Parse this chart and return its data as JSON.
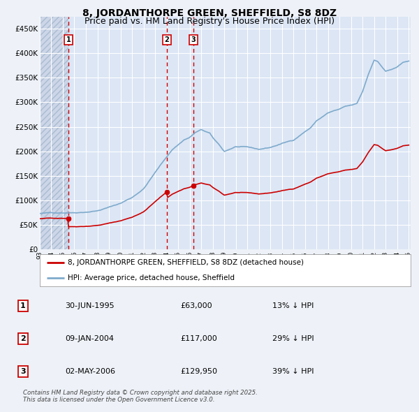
{
  "title": "8, JORDANTHORPE GREEN, SHEFFIELD, S8 8DZ",
  "subtitle": "Price paid vs. HM Land Registry's House Price Index (HPI)",
  "title_fontsize": 10,
  "subtitle_fontsize": 9,
  "background_color": "#eef2f8",
  "plot_bg_color": "#dce6f5",
  "grid_color": "#ffffff",
  "sale_prices": [
    63000,
    117000,
    129950
  ],
  "sale_labels": [
    "1",
    "2",
    "3"
  ],
  "annotation_rows": [
    [
      "1",
      "30-JUN-1995",
      "£63,000",
      "13% ↓ HPI"
    ],
    [
      "2",
      "09-JAN-2004",
      "£117,000",
      "29% ↓ HPI"
    ],
    [
      "3",
      "02-MAY-2006",
      "£129,950",
      "39% ↓ HPI"
    ]
  ],
  "legend_entries": [
    "8, JORDANTHORPE GREEN, SHEFFIELD, S8 8DZ (detached house)",
    "HPI: Average price, detached house, Sheffield"
  ],
  "footer_text": "Contains HM Land Registry data © Crown copyright and database right 2025.\nThis data is licensed under the Open Government Licence v3.0.",
  "hpi_color": "#7eaacc",
  "sale_color": "#cc0000",
  "vline_color": "#cc0000",
  "ylim": [
    0,
    475000
  ],
  "yticks": [
    0,
    50000,
    100000,
    150000,
    200000,
    250000,
    300000,
    350000,
    400000,
    450000
  ],
  "ytick_labels": [
    "£0",
    "£50K",
    "£100K",
    "£150K",
    "£200K",
    "£250K",
    "£300K",
    "£350K",
    "£400K",
    "£450K"
  ],
  "hpi_keypoints_year": [
    1993,
    1994,
    1995,
    1996,
    1997,
    1998,
    1999,
    2000,
    2001,
    2002,
    2003,
    2004,
    2004.5,
    2005,
    2005.5,
    2006,
    2006.5,
    2007,
    2007.75,
    2008,
    2008.5,
    2009,
    2009.5,
    2010,
    2011,
    2012,
    2013,
    2014,
    2015,
    2016,
    2016.5,
    2017,
    2017.5,
    2018,
    2018.5,
    2019,
    2019.5,
    2020,
    2020.5,
    2021,
    2021.5,
    2022,
    2022.3,
    2022.7,
    2023,
    2023.5,
    2024,
    2024.5,
    2025
  ],
  "hpi_keypoints_val": [
    72000,
    73000,
    74000,
    75000,
    77000,
    80000,
    87000,
    95000,
    107000,
    125000,
    158000,
    190000,
    205000,
    215000,
    225000,
    230000,
    240000,
    245000,
    238000,
    228000,
    215000,
    200000,
    205000,
    210000,
    208000,
    203000,
    207000,
    215000,
    222000,
    240000,
    248000,
    262000,
    270000,
    278000,
    282000,
    285000,
    290000,
    292000,
    295000,
    320000,
    355000,
    385000,
    382000,
    370000,
    362000,
    365000,
    370000,
    378000,
    382000
  ]
}
